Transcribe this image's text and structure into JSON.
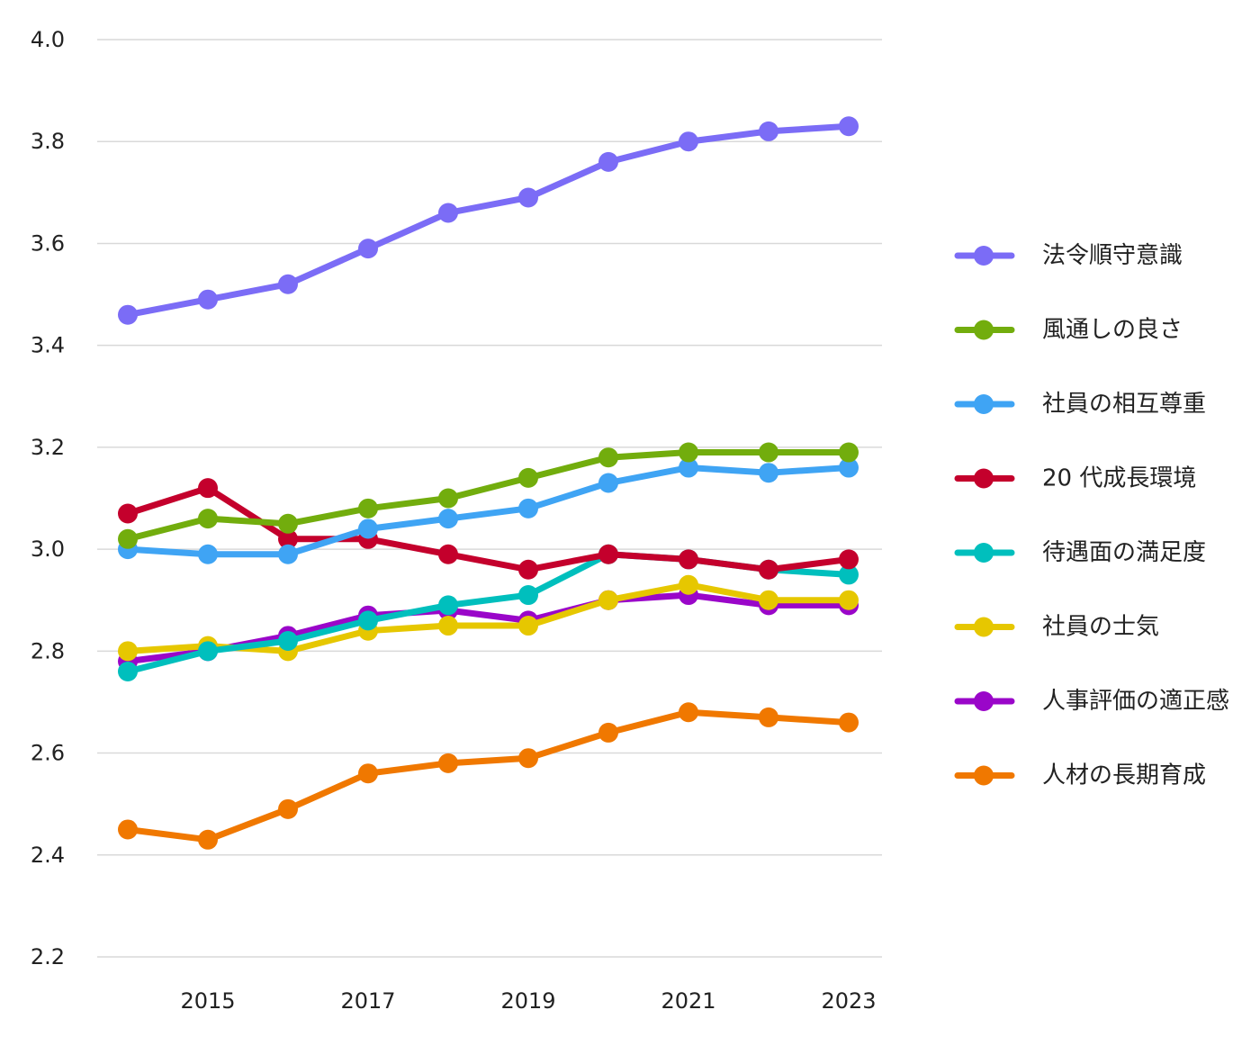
{
  "chart_data": {
    "type": "line",
    "title": "",
    "xlabel": "",
    "ylabel": "",
    "x": [
      2014,
      2015,
      2016,
      2017,
      2018,
      2019,
      2020,
      2021,
      2022,
      2023
    ],
    "xticks": [
      "2015",
      "2017",
      "2019",
      "2021",
      "2023"
    ],
    "yticks": [
      "2.2",
      "2.4",
      "2.6",
      "2.8",
      "3.0",
      "3.2",
      "3.4",
      "3.6",
      "3.8",
      "4.0"
    ],
    "ylim": [
      2.2,
      4.0
    ],
    "grid": "horizontal",
    "legend_position": "right",
    "series": [
      {
        "name": "法令順守意識",
        "color": "#7b6cf6",
        "values": [
          3.46,
          3.49,
          3.52,
          3.59,
          3.66,
          3.69,
          3.76,
          3.8,
          3.82,
          3.83
        ]
      },
      {
        "name": "風通しの良さ",
        "color": "#72ad0d",
        "values": [
          3.02,
          3.06,
          3.05,
          3.08,
          3.1,
          3.14,
          3.18,
          3.19,
          3.19,
          3.19
        ]
      },
      {
        "name": "社員の相互尊重",
        "color": "#3fa4f4",
        "values": [
          3.0,
          2.99,
          2.99,
          3.04,
          3.06,
          3.08,
          3.13,
          3.16,
          3.15,
          3.16
        ]
      },
      {
        "name": "20 代成長環境",
        "color": "#c4002c",
        "values": [
          3.07,
          3.12,
          3.02,
          3.02,
          2.99,
          2.96,
          2.99,
          2.98,
          2.96,
          2.98
        ]
      },
      {
        "name": "待遇面の満足度",
        "color": "#00bfbd",
        "values": [
          2.76,
          2.8,
          2.82,
          2.86,
          2.89,
          2.91,
          2.99,
          2.98,
          2.96,
          2.95
        ]
      },
      {
        "name": "社員の士気",
        "color": "#e6c700",
        "values": [
          2.8,
          2.81,
          2.8,
          2.84,
          2.85,
          2.85,
          2.9,
          2.93,
          2.9,
          2.9
        ]
      },
      {
        "name": "人事評価の適正感",
        "color": "#9a06c9",
        "values": [
          2.78,
          2.8,
          2.83,
          2.87,
          2.88,
          2.86,
          2.9,
          2.91,
          2.89,
          2.89
        ]
      },
      {
        "name": "人材の長期育成",
        "color": "#f07800",
        "values": [
          2.45,
          2.43,
          2.49,
          2.56,
          2.58,
          2.59,
          2.64,
          2.68,
          2.67,
          2.66
        ]
      }
    ]
  }
}
